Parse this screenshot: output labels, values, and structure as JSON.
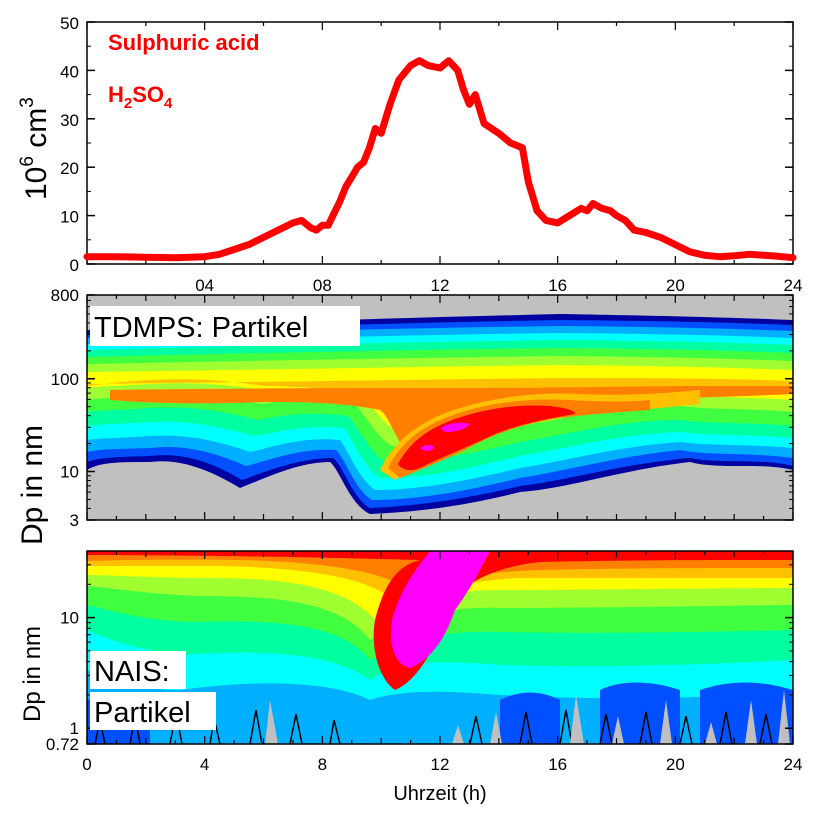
{
  "chart_data": [
    {
      "type": "line",
      "name": "top",
      "legend": {
        "line1": "Sulphuric acid",
        "line2_base": "H",
        "line2_sub1": "2",
        "line2_mid": "SO",
        "line2_sub2": "4"
      },
      "ylabel": {
        "base": "10",
        "exp": "6",
        "unit": " cm",
        "unit_exp": "3"
      },
      "xlim": [
        0,
        24
      ],
      "ylim": [
        0,
        50
      ],
      "yticks": [
        "0",
        "10",
        "20",
        "30",
        "40",
        "50"
      ],
      "xticks": [
        "04",
        "08",
        "12",
        "16",
        "20",
        "24"
      ],
      "color": "#ff0000",
      "series": [
        {
          "x": [
            0,
            1,
            2,
            3,
            4,
            4.5,
            5,
            5.5,
            6,
            6.5,
            7,
            7.3,
            7.6,
            7.8,
            8,
            8.2,
            8.4,
            8.6,
            8.8,
            9,
            9.2,
            9.4,
            9.6,
            9.8,
            10,
            10.3,
            10.6,
            11,
            11.3,
            11.6,
            12,
            12.3,
            12.6,
            12.8,
            13,
            13.2,
            13.5,
            14,
            14.4,
            14.8,
            15,
            15.3,
            15.6,
            16,
            16.4,
            16.8,
            17,
            17.2,
            17.5,
            17.8,
            18,
            18.3,
            18.6,
            19,
            19.5,
            20,
            20.5,
            21,
            21.5,
            22,
            22.5,
            23,
            23.5,
            24
          ],
          "y": [
            1.5,
            1.5,
            1.4,
            1.3,
            1.5,
            2,
            3,
            4,
            5.5,
            7,
            8.5,
            9,
            7.5,
            7,
            8,
            8,
            10.5,
            13,
            16,
            18,
            20,
            21,
            24,
            28,
            27,
            33,
            38,
            41,
            42,
            41,
            40.5,
            42,
            40,
            36,
            33,
            35,
            29,
            27,
            25,
            24,
            17,
            11,
            9,
            8.5,
            10,
            11.5,
            11,
            12.5,
            11.5,
            11,
            10,
            9,
            7,
            6.5,
            5.5,
            4,
            2.5,
            1.8,
            1.5,
            1.7,
            2,
            1.8,
            1.6,
            1.3
          ]
        }
      ]
    },
    {
      "type": "heatmap",
      "name": "middle",
      "panel_label": "TDMPS: Partikel",
      "ylabel": "Dp in nm",
      "xlim": [
        0,
        24
      ],
      "ylim": [
        3,
        800
      ],
      "yscale": "log",
      "yticks": [
        "3",
        "10",
        "100",
        "800"
      ],
      "colorscale": [
        "#c0c0c0",
        "#0000a0",
        "#0050ff",
        "#00b0ff",
        "#00ffff",
        "#00ffa0",
        "#40ff40",
        "#a0ff30",
        "#e0ff20",
        "#ffff00",
        "#ffc000",
        "#ff8000",
        "#ff3000",
        "#ff0000",
        "#ff00ff"
      ]
    },
    {
      "type": "heatmap",
      "name": "bottom",
      "panel_label_line1": "NAIS:",
      "panel_label_line2": "Partikel",
      "ylabel": "Dp in nm",
      "xlabel": "Uhrzeit (h)",
      "xlim": [
        0,
        24
      ],
      "ylim": [
        0.72,
        40
      ],
      "yscale": "log",
      "yticks": [
        "0.72",
        "1",
        "10"
      ],
      "xticks": [
        "0",
        "4",
        "8",
        "12",
        "16",
        "20",
        "24"
      ]
    }
  ]
}
